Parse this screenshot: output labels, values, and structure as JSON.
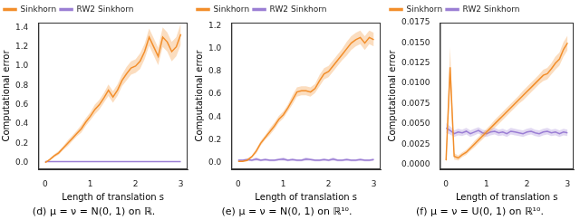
{
  "chart_data": [
    {
      "type": "line",
      "title": "(d) μ = ν = N(0, 1) on ℝ.",
      "x_label": "Length of translation s",
      "y_label": "Computational error",
      "x": [
        0,
        0.1,
        0.2,
        0.3,
        0.4,
        0.5,
        0.6,
        0.7,
        0.8,
        0.9,
        1,
        1.1,
        1.2,
        1.3,
        1.4,
        1.5,
        1.6,
        1.7,
        1.8,
        1.9,
        2,
        2.1,
        2.2,
        2.3,
        2.4,
        2.5,
        2.6,
        2.7,
        2.8,
        2.9,
        3
      ],
      "xlim": [
        -0.15,
        3.15
      ],
      "xticks": [
        0,
        1,
        2,
        3
      ],
      "ylim": [
        -0.07,
        1.45
      ],
      "yticks": [
        {
          "value": 0,
          "label": "0.0"
        },
        0.2,
        0.4,
        0.6,
        0.8,
        {
          "value": 1,
          "label": "1.0"
        },
        1.2,
        1.4
      ],
      "grid": false,
      "legend": "upper left",
      "series": [
        {
          "name": "Sinkhorn",
          "color": "#f28e2b",
          "values": [
            0,
            0.03,
            0.07,
            0.1,
            0.15,
            0.2,
            0.25,
            0.3,
            0.35,
            0.42,
            0.48,
            0.55,
            0.6,
            0.67,
            0.75,
            0.68,
            0.75,
            0.85,
            0.92,
            0.98,
            1.0,
            1.05,
            1.15,
            1.3,
            1.2,
            1.1,
            1.3,
            1.25,
            1.15,
            1.2,
            1.33
          ],
          "errors": [
            0.005,
            0.01,
            0.015,
            0.02,
            0.02,
            0.03,
            0.03,
            0.03,
            0.04,
            0.04,
            0.04,
            0.05,
            0.05,
            0.05,
            0.06,
            0.06,
            0.06,
            0.06,
            0.07,
            0.07,
            0.07,
            0.08,
            0.08,
            0.09,
            0.09,
            0.09,
            0.1,
            0.1,
            0.1,
            0.1,
            0.11
          ]
        },
        {
          "name": "RW2 Sinkhorn",
          "color": "#9b7fd4",
          "values": [
            0.01,
            0.01,
            0.01,
            0.01,
            0.01,
            0.01,
            0.01,
            0.01,
            0.01,
            0.01,
            0.01,
            0.01,
            0.01,
            0.01,
            0.01,
            0.01,
            0.01,
            0.01,
            0.01,
            0.01,
            0.01,
            0.01,
            0.01,
            0.01,
            0.01,
            0.01,
            0.01,
            0.01,
            0.01,
            0.01,
            0.01
          ],
          "errors": [
            0.004,
            0.004,
            0.004,
            0.004,
            0.004,
            0.004,
            0.004,
            0.004,
            0.004,
            0.004,
            0.004,
            0.004,
            0.004,
            0.004,
            0.004,
            0.004,
            0.004,
            0.004,
            0.004,
            0.004,
            0.004,
            0.004,
            0.004,
            0.004,
            0.004,
            0.004,
            0.004,
            0.004,
            0.004,
            0.004,
            0.004
          ]
        }
      ]
    },
    {
      "type": "line",
      "title": "(e) μ = ν = N(0, 1) on ℝ¹⁰.",
      "x_label": "Length of translation s",
      "y_label": "Computational error",
      "x": [
        0,
        0.1,
        0.2,
        0.3,
        0.4,
        0.5,
        0.6,
        0.7,
        0.8,
        0.9,
        1,
        1.1,
        1.2,
        1.3,
        1.4,
        1.5,
        1.6,
        1.7,
        1.8,
        1.9,
        2,
        2.1,
        2.2,
        2.3,
        2.4,
        2.5,
        2.6,
        2.7,
        2.8,
        2.9,
        3
      ],
      "xlim": [
        -0.15,
        3.15
      ],
      "xticks": [
        0,
        1,
        2,
        3
      ],
      "ylim": [
        -0.06,
        1.23
      ],
      "yticks": [
        {
          "value": 0,
          "label": "0.0"
        },
        0.2,
        0.4,
        0.6,
        0.8,
        {
          "value": 1,
          "label": "1.0"
        },
        1.2
      ],
      "grid": false,
      "legend": "upper left",
      "series": [
        {
          "name": "Sinkhorn",
          "color": "#f28e2b",
          "values": [
            0.01,
            0.01,
            0.02,
            0.05,
            0.1,
            0.17,
            0.22,
            0.27,
            0.32,
            0.38,
            0.42,
            0.48,
            0.55,
            0.62,
            0.63,
            0.63,
            0.62,
            0.65,
            0.72,
            0.78,
            0.8,
            0.85,
            0.9,
            0.95,
            1.0,
            1.05,
            1.08,
            1.1,
            1.05,
            1.1,
            1.08
          ],
          "errors": [
            0.005,
            0.005,
            0.01,
            0.01,
            0.02,
            0.02,
            0.02,
            0.03,
            0.03,
            0.03,
            0.03,
            0.03,
            0.04,
            0.04,
            0.04,
            0.04,
            0.04,
            0.04,
            0.05,
            0.05,
            0.05,
            0.05,
            0.05,
            0.05,
            0.06,
            0.06,
            0.06,
            0.06,
            0.06,
            0.06,
            0.06
          ]
        },
        {
          "name": "RW2 Sinkhorn",
          "color": "#9b7fd4",
          "values": [
            0.02,
            0.02,
            0.025,
            0.02,
            0.03,
            0.02,
            0.025,
            0.02,
            0.02,
            0.025,
            0.03,
            0.02,
            0.025,
            0.02,
            0.02,
            0.03,
            0.025,
            0.02,
            0.02,
            0.025,
            0.02,
            0.03,
            0.02,
            0.02,
            0.025,
            0.02,
            0.02,
            0.025,
            0.02,
            0.02,
            0.025
          ],
          "errors": [
            0.01,
            0.01,
            0.01,
            0.01,
            0.015,
            0.01,
            0.01,
            0.01,
            0.01,
            0.01,
            0.015,
            0.01,
            0.01,
            0.01,
            0.01,
            0.015,
            0.01,
            0.01,
            0.01,
            0.01,
            0.01,
            0.015,
            0.01,
            0.01,
            0.01,
            0.01,
            0.01,
            0.01,
            0.01,
            0.01,
            0.01
          ]
        }
      ]
    },
    {
      "type": "line",
      "title": "(f) μ = ν = U(0, 1) on ℝ¹⁰.",
      "x_label": "Length of translation s",
      "y_label": "Computational error",
      "x": [
        0,
        0.1,
        0.2,
        0.3,
        0.4,
        0.5,
        0.6,
        0.7,
        0.8,
        0.9,
        1,
        1.1,
        1.2,
        1.3,
        1.4,
        1.5,
        1.6,
        1.7,
        1.8,
        1.9,
        2,
        2.1,
        2.2,
        2.3,
        2.4,
        2.5,
        2.6,
        2.7,
        2.8,
        2.9,
        3
      ],
      "xlim": [
        -0.15,
        3.15
      ],
      "xticks": [
        0,
        1,
        2,
        3
      ],
      "ylim": [
        -0.0006,
        0.0175
      ],
      "yticks": [
        {
          "value": 0,
          "label": "0.0000"
        },
        {
          "value": 0.0025,
          "label": "0.0025"
        },
        {
          "value": 0.005,
          "label": "0.0050"
        },
        {
          "value": 0.0075,
          "label": "0.0075"
        },
        {
          "value": 0.01,
          "label": "0.0100"
        },
        {
          "value": 0.0125,
          "label": "0.0125"
        },
        {
          "value": 0.015,
          "label": "0.0150"
        },
        {
          "value": 0.0175,
          "label": "0.0175"
        }
      ],
      "grid": false,
      "legend": "upper left",
      "series": [
        {
          "name": "Sinkhorn",
          "color": "#f28e2b",
          "values": [
            0.0005,
            0.012,
            0.001,
            0.0008,
            0.0012,
            0.0015,
            0.002,
            0.0025,
            0.003,
            0.0035,
            0.004,
            0.0045,
            0.005,
            0.0055,
            0.006,
            0.0065,
            0.007,
            0.0075,
            0.008,
            0.0085,
            0.009,
            0.0095,
            0.01,
            0.0105,
            0.011,
            0.0112,
            0.0118,
            0.0125,
            0.013,
            0.0142,
            0.015
          ],
          "errors": [
            0.0003,
            0.0025,
            0.0004,
            0.0003,
            0.0003,
            0.0003,
            0.0003,
            0.0004,
            0.0004,
            0.0004,
            0.0004,
            0.0004,
            0.0005,
            0.0005,
            0.0005,
            0.0005,
            0.0005,
            0.0005,
            0.0005,
            0.0006,
            0.0006,
            0.0006,
            0.0006,
            0.0006,
            0.0007,
            0.0007,
            0.0007,
            0.0008,
            0.0008,
            0.0009,
            0.0009
          ]
        },
        {
          "name": "RW2 Sinkhorn",
          "color": "#9b7fd4",
          "values": [
            0.0045,
            0.0042,
            0.0038,
            0.004,
            0.0039,
            0.0041,
            0.0038,
            0.004,
            0.0042,
            0.0039,
            0.0038,
            0.004,
            0.0041,
            0.0039,
            0.004,
            0.0038,
            0.0041,
            0.004,
            0.0039,
            0.0038,
            0.004,
            0.0041,
            0.0039,
            0.0038,
            0.004,
            0.0041,
            0.0039,
            0.004,
            0.0038,
            0.004,
            0.0039
          ],
          "errors": [
            0.0006,
            0.0005,
            0.0004,
            0.0004,
            0.0004,
            0.0004,
            0.0004,
            0.0004,
            0.0004,
            0.0004,
            0.0004,
            0.0004,
            0.0004,
            0.0004,
            0.0004,
            0.0004,
            0.0004,
            0.0004,
            0.0004,
            0.0004,
            0.0004,
            0.0004,
            0.0004,
            0.0004,
            0.0004,
            0.0004,
            0.0004,
            0.0004,
            0.0004,
            0.0004,
            0.0004
          ]
        }
      ]
    }
  ]
}
